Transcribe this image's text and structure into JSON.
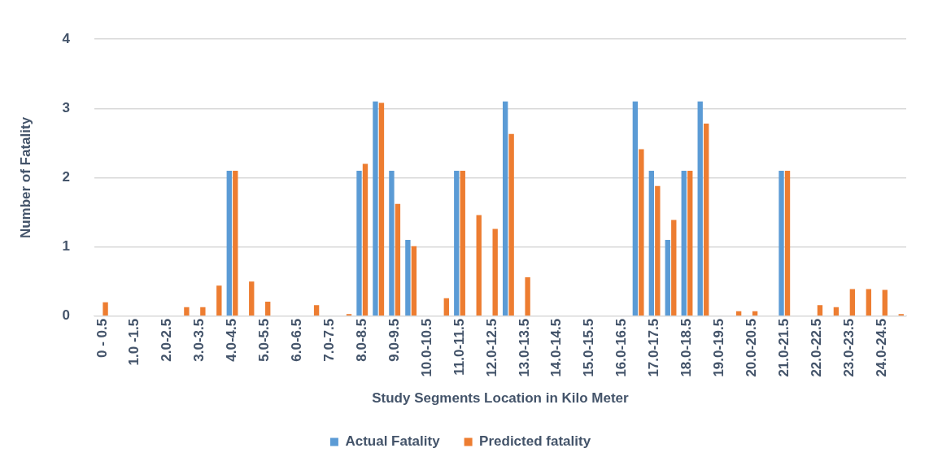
{
  "chart_data": {
    "type": "bar",
    "xlabel": "Study Segments Location in Kilo Meter",
    "ylabel": "Number of Fatality",
    "categories": [
      "0 - 0.5",
      null,
      "1.0 -1.5",
      null,
      "2.0-2.5",
      null,
      "3.0-3.5",
      null,
      "4.0-4.5",
      null,
      "5.0-5.5",
      null,
      "6.0-6.5",
      null,
      "7.0-7.5",
      null,
      "8.0-8.5",
      null,
      "9.0-9.5",
      null,
      "10.0-10.5",
      null,
      "11.0-11.5",
      null,
      "12.0-12.5",
      null,
      "13.0-13.5",
      null,
      "14.0-14.5",
      null,
      "15.0-15.5",
      null,
      "16.0-16.5",
      null,
      "17.0-17.5",
      null,
      "18.0-18.5",
      null,
      "19.0-19.5",
      null,
      "20.0-20.5",
      null,
      "21.0-21.5",
      null,
      "22.0-22.5",
      null,
      "23.0-23.5",
      null,
      "24.0-24.5",
      null
    ],
    "series": [
      {
        "name": "Actual Fatality",
        "color": "#5b9bd5",
        "values": [
          0,
          0,
          0,
          0,
          0,
          0,
          0,
          0,
          2.1,
          0,
          0,
          0,
          0,
          0,
          0,
          0,
          2.1,
          3.1,
          2.1,
          1.1,
          0,
          0,
          2.1,
          0,
          0,
          3.1,
          0,
          0,
          0,
          0,
          0,
          0,
          0,
          3.1,
          2.1,
          1.1,
          2.1,
          3.1,
          0,
          0,
          0,
          0,
          2.1,
          0,
          0,
          0,
          0,
          0,
          0,
          0
        ]
      },
      {
        "name": "Predicted fatality",
        "color": "#ed7d31",
        "values": [
          0.2,
          0,
          0,
          0,
          0,
          0.13,
          0.13,
          0.44,
          2.1,
          0.5,
          0.21,
          0,
          0,
          0.16,
          0,
          0.03,
          2.2,
          3.08,
          1.62,
          1.01,
          0,
          0.26,
          2.1,
          1.46,
          1.26,
          2.63,
          0.56,
          0,
          0,
          0,
          0,
          0,
          0,
          2.41,
          1.88,
          1.39,
          2.1,
          2.78,
          0,
          0.07,
          0.07,
          0,
          2.1,
          0,
          0.16,
          0.13,
          0.39,
          0.39,
          0.38,
          0.03
        ]
      }
    ],
    "ylim": [
      0,
      4
    ],
    "yticks": [
      0,
      1,
      2,
      3,
      4
    ],
    "grid": "y",
    "legend": "bottom"
  }
}
